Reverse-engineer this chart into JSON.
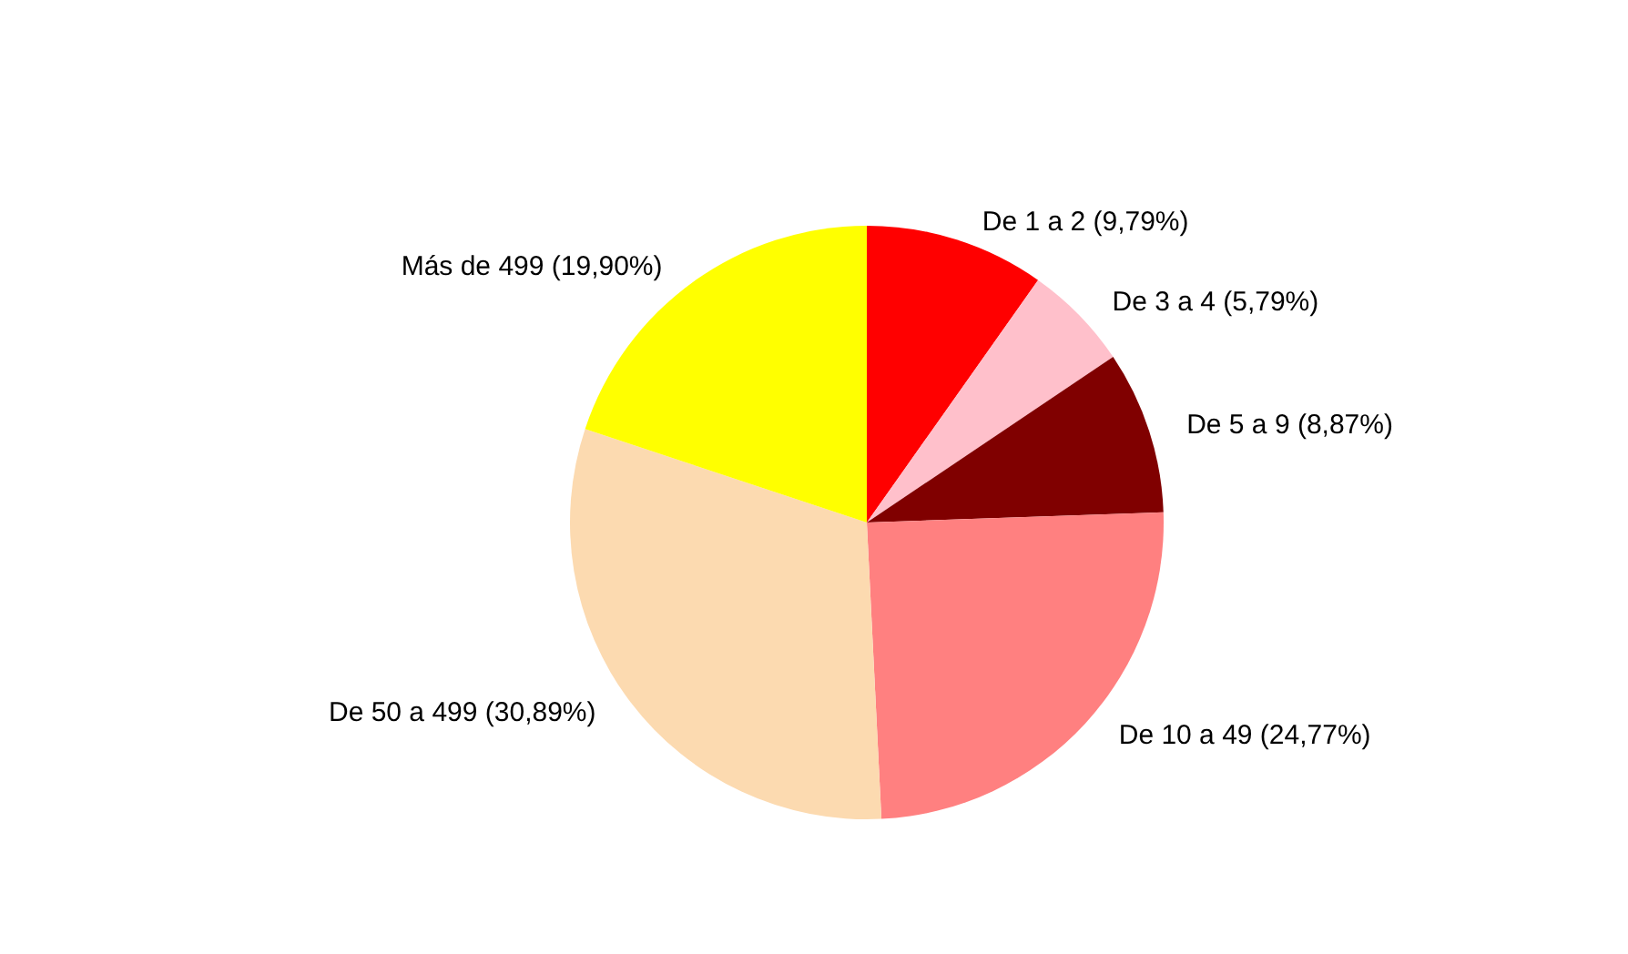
{
  "chart_data": {
    "type": "pie",
    "categories": [
      "De 1 a 2",
      "De 3 a 4",
      "De 5 a 9",
      "De 10 a 49",
      "De 50 a 499",
      "Más de 499"
    ],
    "values": [
      9.79,
      5.79,
      8.87,
      24.77,
      30.89,
      19.9
    ],
    "value_labels": [
      "(9,79%)",
      "(5,79%)",
      "(8,87%)",
      "(24,77%)",
      "(30,89%)",
      "(19,90%)"
    ],
    "colors": [
      "#ff0000",
      "#ffc0cb",
      "#800000",
      "#ff8080",
      "#fcdab0",
      "#ffff00"
    ],
    "legend": false
  }
}
